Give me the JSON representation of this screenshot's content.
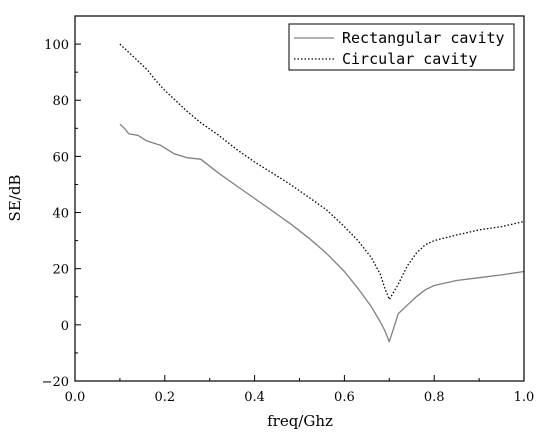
{
  "chart_data": {
    "type": "line",
    "title": "",
    "xlabel": "freq/Ghz",
    "ylabel": "SE/dB",
    "xlim": [
      0.0,
      1.0
    ],
    "ylim": [
      -20,
      110
    ],
    "xticks": [
      0.0,
      0.2,
      0.4,
      0.6,
      0.8,
      1.0
    ],
    "xtick_labels": [
      "0.0",
      "0.2",
      "0.4",
      "0.6",
      "0.8",
      "1.0"
    ],
    "yticks": [
      -20,
      0,
      20,
      40,
      60,
      80,
      100
    ],
    "ytick_labels": [
      "−20",
      "0",
      "20",
      "40",
      "60",
      "80",
      "100"
    ],
    "grid": false,
    "legend_position": "top-right",
    "series": [
      {
        "name": "Rectangular cavity",
        "style": "solid",
        "color": "#808080",
        "x": [
          0.1,
          0.11,
          0.12,
          0.14,
          0.16,
          0.19,
          0.22,
          0.25,
          0.28,
          0.32,
          0.36,
          0.4,
          0.44,
          0.48,
          0.52,
          0.56,
          0.6,
          0.63,
          0.66,
          0.68,
          0.69,
          0.7,
          0.72,
          0.74,
          0.76,
          0.78,
          0.8,
          0.85,
          0.9,
          0.95,
          1.0
        ],
        "y": [
          71.5,
          70.0,
          68.0,
          67.5,
          65.5,
          64.0,
          61.0,
          59.5,
          59.0,
          54.0,
          49.5,
          45.0,
          40.5,
          36.0,
          31.0,
          25.5,
          19.0,
          13.0,
          6.5,
          1.0,
          -2.0,
          -6.0,
          4.0,
          7.0,
          10.0,
          12.5,
          14.0,
          15.8,
          16.8,
          17.8,
          19.0
        ]
      },
      {
        "name": "Circular cavity",
        "style": "dotted",
        "color": "#000000",
        "x": [
          0.1,
          0.12,
          0.14,
          0.16,
          0.18,
          0.2,
          0.22,
          0.25,
          0.28,
          0.32,
          0.36,
          0.4,
          0.44,
          0.48,
          0.52,
          0.56,
          0.6,
          0.63,
          0.66,
          0.68,
          0.69,
          0.7,
          0.72,
          0.74,
          0.76,
          0.78,
          0.8,
          0.85,
          0.9,
          0.95,
          1.0
        ],
        "y": [
          100.0,
          97.0,
          94.0,
          91.0,
          87.0,
          83.5,
          80.5,
          76.0,
          72.0,
          67.5,
          62.5,
          58.0,
          54.0,
          50.0,
          45.5,
          41.0,
          35.0,
          30.0,
          24.0,
          18.0,
          13.0,
          9.0,
          14.5,
          21.0,
          25.5,
          28.5,
          30.0,
          32.0,
          33.8,
          35.0,
          36.8
        ]
      }
    ]
  }
}
